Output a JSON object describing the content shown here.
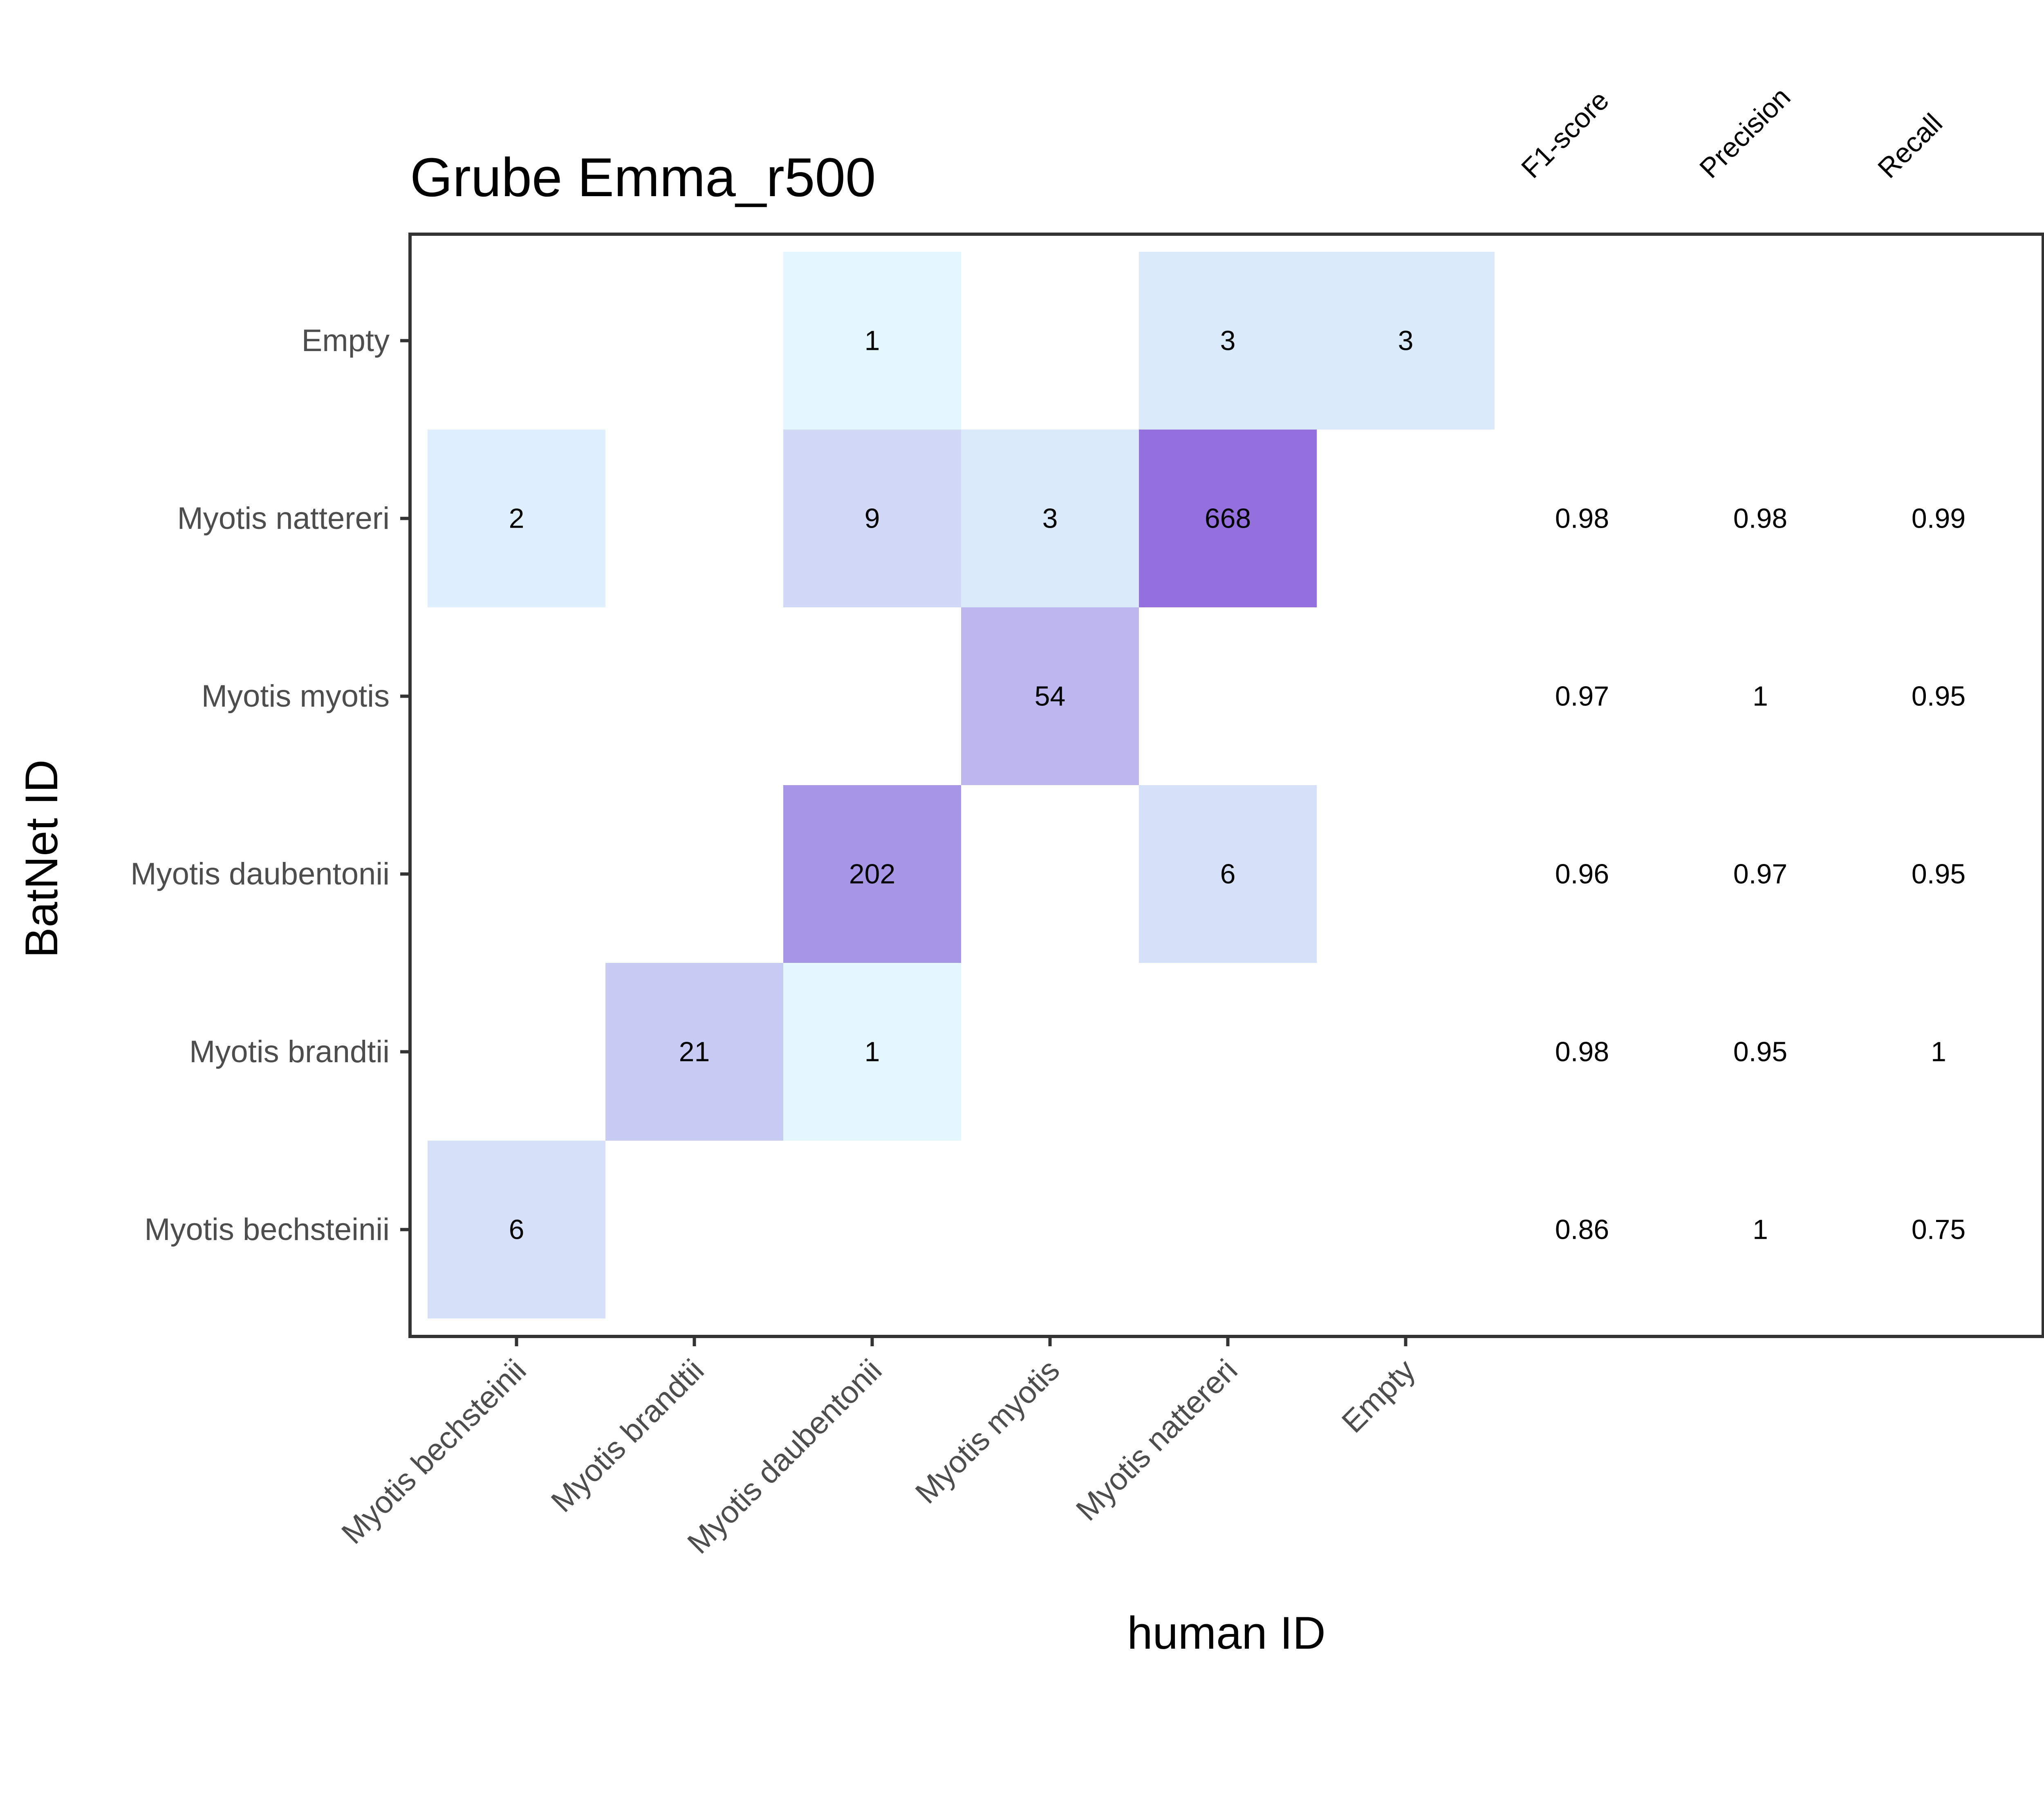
{
  "chart_data": {
    "type": "heatmap",
    "title": "Grube Emma_r500",
    "xlabel": "human ID",
    "ylabel": "BatNet ID",
    "x_categories": [
      "Myotis bechsteinii",
      "Myotis brandtii",
      "Myotis daubentonii",
      "Myotis myotis",
      "Myotis nattereri",
      "Empty"
    ],
    "y_categories": [
      "Myotis bechsteinii",
      "Myotis brandtii",
      "Myotis daubentonii",
      "Myotis myotis",
      "Myotis nattereri",
      "Empty"
    ],
    "cells": [
      {
        "x": "Myotis daubentonii",
        "y": "Empty",
        "value": 1,
        "label": "1",
        "color": "#e5f7fe"
      },
      {
        "x": "Myotis nattereri",
        "y": "Empty",
        "value": 3,
        "label": "3",
        "color": "#dbeafb"
      },
      {
        "x": "Empty",
        "y": "Empty",
        "value": 3,
        "label": "3",
        "color": "#dbeafb"
      },
      {
        "x": "Myotis bechsteinii",
        "y": "Myotis nattereri",
        "value": 2,
        "label": "2",
        "color": "#e0effd"
      },
      {
        "x": "Myotis daubentonii",
        "y": "Myotis nattereri",
        "value": 9,
        "label": "9",
        "color": "#d1d9f6"
      },
      {
        "x": "Myotis myotis",
        "y": "Myotis nattereri",
        "value": 3,
        "label": "3",
        "color": "#dbeafb"
      },
      {
        "x": "Myotis nattereri",
        "y": "Myotis nattereri",
        "value": 668,
        "label": "668",
        "color": "#9470de"
      },
      {
        "x": "Myotis myotis",
        "y": "Myotis myotis",
        "value": 54,
        "label": "54",
        "color": "#bcb7ef"
      },
      {
        "x": "Myotis daubentonii",
        "y": "Myotis daubentonii",
        "value": 202,
        "label": "202",
        "color": "#a696e6"
      },
      {
        "x": "Myotis nattereri",
        "y": "Myotis daubentonii",
        "value": 6,
        "label": "6",
        "color": "#d6e1f9"
      },
      {
        "x": "Myotis brandtii",
        "y": "Myotis brandtii",
        "value": 21,
        "label": "21",
        "color": "#c8cbf4"
      },
      {
        "x": "Myotis daubentonii",
        "y": "Myotis brandtii",
        "value": 1,
        "label": "1",
        "color": "#e5f7fe"
      },
      {
        "x": "Myotis bechsteinii",
        "y": "Myotis bechsteinii",
        "value": 6,
        "label": "6",
        "color": "#d6e1f9"
      }
    ],
    "metric_headers": [
      "F1-score",
      "Precision",
      "Recall"
    ],
    "metrics": [
      {
        "y": "Myotis nattereri",
        "values": [
          "0.98",
          "0.98",
          "0.99"
        ]
      },
      {
        "y": "Myotis myotis",
        "values": [
          "0.97",
          "1",
          "0.95"
        ]
      },
      {
        "y": "Myotis daubentonii",
        "values": [
          "0.96",
          "0.97",
          "0.95"
        ]
      },
      {
        "y": "Myotis brandtii",
        "values": [
          "0.98",
          "0.95",
          "1"
        ]
      },
      {
        "y": "Myotis bechsteinii",
        "values": [
          "0.86",
          "1",
          "0.75"
        ]
      }
    ],
    "grid": false,
    "legend": "none"
  }
}
